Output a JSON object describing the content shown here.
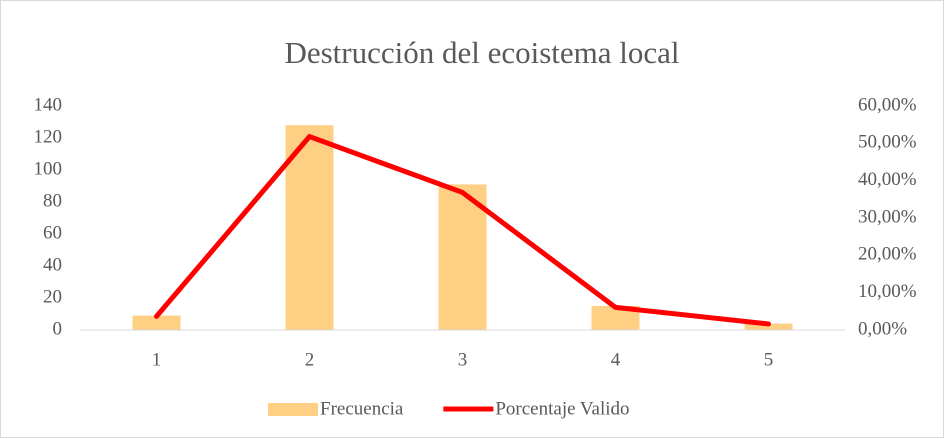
{
  "chart_data": {
    "type": "bar_line",
    "title": "Destrucción del ecoistema local",
    "categories": [
      "1",
      "2",
      "3",
      "4",
      "5"
    ],
    "series": [
      {
        "name": "Frecuencia",
        "type": "bar",
        "color": "#ffd084",
        "values": [
          9,
          128,
          91,
          15,
          4
        ]
      },
      {
        "name": "Porcentaje Valido",
        "type": "line",
        "axis": "y2",
        "color": "#ff0000",
        "values": [
          3.64,
          51.82,
          36.84,
          6.07,
          1.62
        ]
      }
    ],
    "ylim": [
      0,
      140
    ],
    "yticks": [
      0,
      20,
      40,
      60,
      80,
      100,
      120,
      140
    ],
    "y2lim": [
      0,
      60
    ],
    "y2ticks": [
      {
        "value": 0,
        "label": "0,00%"
      },
      {
        "value": 10,
        "label": "10,00%"
      },
      {
        "value": 20,
        "label": "20,00%"
      },
      {
        "value": 30,
        "label": "30,00%"
      },
      {
        "value": 40,
        "label": "40,00%"
      },
      {
        "value": 50,
        "label": "50,00%"
      },
      {
        "value": 60,
        "label": "60,00%"
      }
    ],
    "grid": false,
    "legend": "bottom"
  }
}
